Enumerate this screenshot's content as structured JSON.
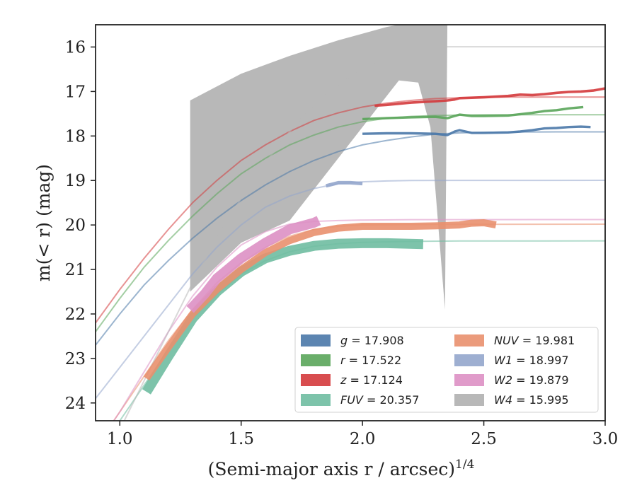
{
  "chart_data": {
    "type": "line",
    "xlabel": "(Semi-major axis r / arcsec)",
    "xlabel_exponent": "1/4",
    "ylabel": "m(< r) (mag)",
    "xlim": [
      0.9,
      3.0
    ],
    "ylim": [
      24.4,
      15.5
    ],
    "y_inverted": true,
    "x_ticks": [
      "1.0",
      "1.5",
      "2.0",
      "2.5",
      "3.0"
    ],
    "y_ticks": [
      "16",
      "17",
      "18",
      "19",
      "20",
      "21",
      "22",
      "23",
      "24"
    ],
    "legend_location": "lower right",
    "legend_columns": 2,
    "series": [
      {
        "name": "g",
        "legend_value": "17.908",
        "color": "#4a78a8",
        "band_width": 1.4,
        "model": [
          [
            0.9,
            22.7
          ],
          [
            1.0,
            22.0
          ],
          [
            1.1,
            21.35
          ],
          [
            1.2,
            20.8
          ],
          [
            1.3,
            20.3
          ],
          [
            1.4,
            19.85
          ],
          [
            1.5,
            19.45
          ],
          [
            1.6,
            19.1
          ],
          [
            1.7,
            18.8
          ],
          [
            1.8,
            18.55
          ],
          [
            1.9,
            18.35
          ],
          [
            2.0,
            18.2
          ],
          [
            2.1,
            18.1
          ],
          [
            2.2,
            18.02
          ],
          [
            2.3,
            17.96
          ],
          [
            2.4,
            17.93
          ],
          [
            2.5,
            17.92
          ],
          [
            2.6,
            17.91
          ],
          [
            2.7,
            17.91
          ],
          [
            2.8,
            17.908
          ],
          [
            2.9,
            17.908
          ],
          [
            3.0,
            17.908
          ]
        ],
        "data": [
          [
            2.0,
            17.95
          ],
          [
            2.1,
            17.94
          ],
          [
            2.2,
            17.94
          ],
          [
            2.3,
            17.95
          ],
          [
            2.35,
            17.98
          ],
          [
            2.38,
            17.9
          ],
          [
            2.4,
            17.87
          ],
          [
            2.45,
            17.93
          ],
          [
            2.5,
            17.93
          ],
          [
            2.6,
            17.92
          ],
          [
            2.65,
            17.9
          ],
          [
            2.7,
            17.87
          ],
          [
            2.75,
            17.83
          ],
          [
            2.8,
            17.82
          ],
          [
            2.85,
            17.8
          ],
          [
            2.9,
            17.79
          ],
          [
            2.94,
            17.8
          ]
        ]
      },
      {
        "name": "r",
        "legend_value": "17.522",
        "color": "#5aa55a",
        "band_width": 1.4,
        "model": [
          [
            0.9,
            22.4
          ],
          [
            1.0,
            21.65
          ],
          [
            1.1,
            20.95
          ],
          [
            1.2,
            20.35
          ],
          [
            1.3,
            19.8
          ],
          [
            1.4,
            19.3
          ],
          [
            1.5,
            18.85
          ],
          [
            1.6,
            18.5
          ],
          [
            1.7,
            18.2
          ],
          [
            1.8,
            17.98
          ],
          [
            1.9,
            17.8
          ],
          [
            2.0,
            17.68
          ],
          [
            2.1,
            17.6
          ],
          [
            2.2,
            17.56
          ],
          [
            2.3,
            17.54
          ],
          [
            2.4,
            17.53
          ],
          [
            2.5,
            17.525
          ],
          [
            2.6,
            17.522
          ],
          [
            3.0,
            17.522
          ]
        ],
        "data": [
          [
            2.0,
            17.62
          ],
          [
            2.1,
            17.6
          ],
          [
            2.2,
            17.58
          ],
          [
            2.3,
            17.57
          ],
          [
            2.35,
            17.6
          ],
          [
            2.38,
            17.55
          ],
          [
            2.4,
            17.52
          ],
          [
            2.45,
            17.55
          ],
          [
            2.5,
            17.55
          ],
          [
            2.6,
            17.54
          ],
          [
            2.7,
            17.48
          ],
          [
            2.75,
            17.44
          ],
          [
            2.8,
            17.42
          ],
          [
            2.85,
            17.38
          ],
          [
            2.91,
            17.35
          ]
        ]
      },
      {
        "name": "z",
        "legend_value": "17.124",
        "color": "#d43a3c",
        "band_width": 1.6,
        "model": [
          [
            0.9,
            22.2
          ],
          [
            1.0,
            21.45
          ],
          [
            1.1,
            20.75
          ],
          [
            1.2,
            20.1
          ],
          [
            1.3,
            19.5
          ],
          [
            1.4,
            19.0
          ],
          [
            1.5,
            18.55
          ],
          [
            1.6,
            18.2
          ],
          [
            1.7,
            17.9
          ],
          [
            1.8,
            17.65
          ],
          [
            1.9,
            17.48
          ],
          [
            2.0,
            17.35
          ],
          [
            2.1,
            17.26
          ],
          [
            2.2,
            17.2
          ],
          [
            2.3,
            17.16
          ],
          [
            2.4,
            17.14
          ],
          [
            2.5,
            17.13
          ],
          [
            2.6,
            17.126
          ],
          [
            2.7,
            17.124
          ],
          [
            3.0,
            17.124
          ]
        ],
        "data": [
          [
            2.05,
            17.32
          ],
          [
            2.1,
            17.3
          ],
          [
            2.2,
            17.25
          ],
          [
            2.3,
            17.22
          ],
          [
            2.35,
            17.2
          ],
          [
            2.38,
            17.18
          ],
          [
            2.4,
            17.15
          ],
          [
            2.5,
            17.13
          ],
          [
            2.6,
            17.1
          ],
          [
            2.65,
            17.07
          ],
          [
            2.7,
            17.08
          ],
          [
            2.75,
            17.06
          ],
          [
            2.8,
            17.03
          ],
          [
            2.85,
            17.01
          ],
          [
            2.9,
            17.0
          ],
          [
            2.95,
            16.98
          ],
          [
            3.0,
            16.93
          ]
        ]
      },
      {
        "name": "FUV",
        "legend_value": "20.357",
        "color": "#6fbda1",
        "band_width": 12,
        "model": [
          [
            0.9,
            25.3
          ],
          [
            1.0,
            24.4
          ],
          [
            1.1,
            23.6
          ],
          [
            1.2,
            22.8
          ],
          [
            1.3,
            22.1
          ],
          [
            1.4,
            21.55
          ],
          [
            1.5,
            21.1
          ],
          [
            1.6,
            20.8
          ],
          [
            1.7,
            20.6
          ],
          [
            1.8,
            20.48
          ],
          [
            1.9,
            20.42
          ],
          [
            2.0,
            20.39
          ],
          [
            2.2,
            20.37
          ],
          [
            2.4,
            20.36
          ],
          [
            3.0,
            20.357
          ]
        ],
        "data": [
          [
            1.11,
            23.75
          ],
          [
            1.2,
            22.95
          ],
          [
            1.3,
            22.1
          ],
          [
            1.4,
            21.5
          ],
          [
            1.5,
            21.05
          ],
          [
            1.6,
            20.75
          ],
          [
            1.7,
            20.58
          ],
          [
            1.8,
            20.47
          ],
          [
            1.9,
            20.42
          ],
          [
            2.0,
            20.41
          ],
          [
            2.1,
            20.41
          ],
          [
            2.25,
            20.43
          ]
        ]
      },
      {
        "name": "NUV",
        "legend_value": "19.981",
        "color": "#e9906e",
        "band_width": 8,
        "model": [
          [
            0.9,
            25.0
          ],
          [
            1.0,
            24.2
          ],
          [
            1.1,
            23.4
          ],
          [
            1.2,
            22.6
          ],
          [
            1.3,
            21.9
          ],
          [
            1.4,
            21.3
          ],
          [
            1.5,
            20.85
          ],
          [
            1.6,
            20.5
          ],
          [
            1.7,
            20.25
          ],
          [
            1.8,
            20.1
          ],
          [
            1.9,
            20.03
          ],
          [
            2.0,
            20.0
          ],
          [
            2.2,
            19.99
          ],
          [
            2.4,
            19.985
          ],
          [
            3.0,
            19.981
          ]
        ],
        "data": [
          [
            1.11,
            23.45
          ],
          [
            1.2,
            22.75
          ],
          [
            1.3,
            22.0
          ],
          [
            1.4,
            21.45
          ],
          [
            1.5,
            21.0
          ],
          [
            1.6,
            20.62
          ],
          [
            1.7,
            20.35
          ],
          [
            1.8,
            20.17
          ],
          [
            1.9,
            20.07
          ],
          [
            2.0,
            20.03
          ],
          [
            2.1,
            20.03
          ],
          [
            2.2,
            20.03
          ],
          [
            2.3,
            20.02
          ],
          [
            2.4,
            20.0
          ],
          [
            2.45,
            19.96
          ],
          [
            2.5,
            19.95
          ],
          [
            2.55,
            20.0
          ]
        ]
      },
      {
        "name": "W1",
        "legend_value": "18.997",
        "color": "#93a6cc",
        "band_width": 3,
        "model": [
          [
            0.9,
            23.9
          ],
          [
            1.0,
            23.2
          ],
          [
            1.1,
            22.5
          ],
          [
            1.2,
            21.8
          ],
          [
            1.3,
            21.1
          ],
          [
            1.4,
            20.5
          ],
          [
            1.5,
            20.0
          ],
          [
            1.6,
            19.6
          ],
          [
            1.7,
            19.35
          ],
          [
            1.8,
            19.18
          ],
          [
            1.9,
            19.07
          ],
          [
            2.0,
            19.03
          ],
          [
            2.1,
            19.01
          ],
          [
            2.2,
            19.0
          ],
          [
            3.0,
            18.997
          ]
        ],
        "data": [
          [
            1.85,
            19.12
          ],
          [
            1.9,
            19.05
          ],
          [
            1.95,
            19.05
          ],
          [
            2.0,
            19.07
          ]
        ]
      },
      {
        "name": "W2",
        "legend_value": "19.879",
        "color": "#dd90c4",
        "band_width": 12,
        "model": [
          [
            0.9,
            25.0
          ],
          [
            1.0,
            24.2
          ],
          [
            1.1,
            23.3
          ],
          [
            1.2,
            22.4
          ],
          [
            1.3,
            21.6
          ],
          [
            1.4,
            20.95
          ],
          [
            1.5,
            20.45
          ],
          [
            1.6,
            20.15
          ],
          [
            1.7,
            19.98
          ],
          [
            1.8,
            19.92
          ],
          [
            1.9,
            19.9
          ],
          [
            2.0,
            19.89
          ],
          [
            2.2,
            19.88
          ],
          [
            3.0,
            19.879
          ]
        ],
        "data": [
          [
            1.29,
            21.9
          ],
          [
            1.35,
            21.55
          ],
          [
            1.4,
            21.2
          ],
          [
            1.5,
            20.75
          ],
          [
            1.6,
            20.4
          ],
          [
            1.7,
            20.1
          ],
          [
            1.8,
            19.95
          ],
          [
            1.82,
            19.9
          ]
        ]
      },
      {
        "name": "W4",
        "legend_value": "15.995",
        "color": "#b8b8b8",
        "band_width": 0,
        "model": [
          [
            0.9,
            25.5
          ],
          [
            1.0,
            24.6
          ],
          [
            1.1,
            23.5
          ],
          [
            1.2,
            22.4
          ],
          [
            1.3,
            21.3
          ],
          [
            1.4,
            20.3
          ],
          [
            1.5,
            19.4
          ],
          [
            1.6,
            18.6
          ],
          [
            1.7,
            17.9
          ],
          [
            1.8,
            17.3
          ],
          [
            1.9,
            16.85
          ],
          [
            2.0,
            16.5
          ],
          [
            2.1,
            16.2
          ],
          [
            2.18,
            16.0
          ],
          [
            2.3,
            15.995
          ],
          [
            3.0,
            15.995
          ]
        ],
        "band_upper": [
          [
            1.29,
            17.2
          ],
          [
            1.5,
            16.6
          ],
          [
            1.7,
            16.2
          ],
          [
            1.9,
            15.85
          ],
          [
            2.0,
            15.7
          ],
          [
            2.1,
            15.55
          ],
          [
            2.2,
            15.45
          ],
          [
            2.35,
            15.45
          ]
        ],
        "band_lower": [
          [
            1.29,
            21.5
          ],
          [
            1.5,
            20.4
          ],
          [
            1.7,
            19.9
          ],
          [
            1.8,
            19.2
          ],
          [
            1.9,
            18.5
          ],
          [
            2.0,
            17.8
          ],
          [
            2.1,
            17.1
          ],
          [
            2.15,
            16.75
          ],
          [
            2.23,
            16.8
          ],
          [
            2.28,
            17.8
          ],
          [
            2.34,
            21.9
          ],
          [
            2.35,
            15.45
          ]
        ]
      }
    ]
  }
}
